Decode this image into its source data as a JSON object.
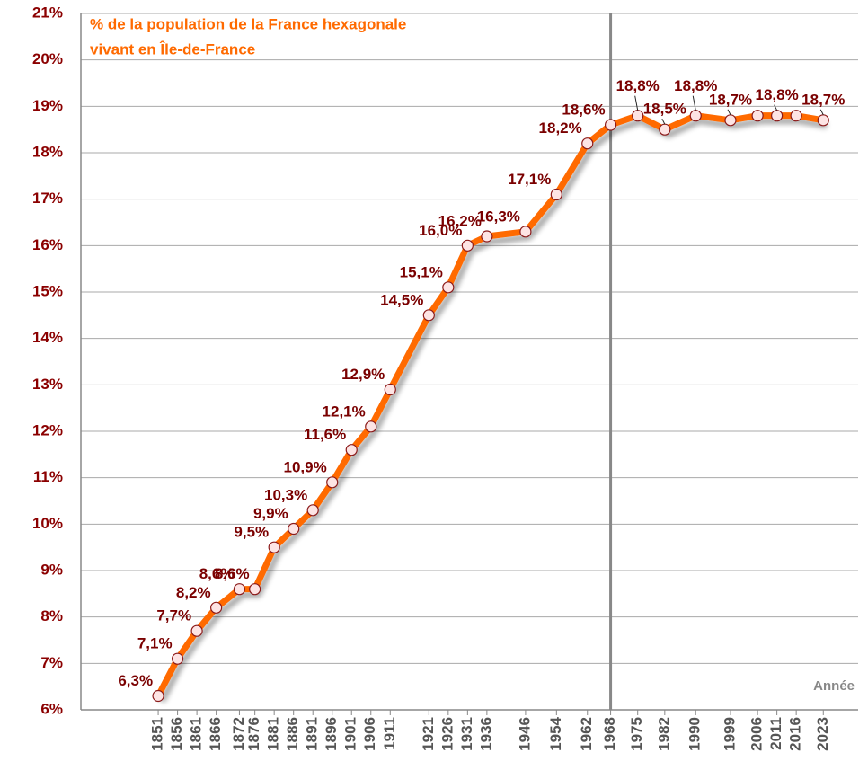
{
  "chart_data": {
    "type": "line",
    "title": [
      "% de la population de la France hexagonale",
      " vivant en Île-de-France"
    ],
    "x_label": "Année",
    "x": [
      1851,
      1856,
      1861,
      1866,
      1872,
      1876,
      1881,
      1886,
      1891,
      1896,
      1901,
      1906,
      1911,
      1921,
      1926,
      1931,
      1936,
      1946,
      1954,
      1962,
      1968,
      1975,
      1982,
      1990,
      1999,
      2006,
      2011,
      2016,
      2023
    ],
    "series": [
      {
        "name": "Île-de-France",
        "color": "#ff6a00",
        "values": [
          6.3,
          7.1,
          7.7,
          8.2,
          8.6,
          8.6,
          9.5,
          9.9,
          10.3,
          10.9,
          11.6,
          12.1,
          12.9,
          14.5,
          15.1,
          16.0,
          16.2,
          16.3,
          17.1,
          18.2,
          18.6,
          18.8,
          18.5,
          18.8,
          18.7,
          18.8,
          18.8,
          18.8,
          18.7
        ],
        "value_labels": [
          "6,3%",
          "7,1%",
          "7,7%",
          "8,2%",
          "8,6%",
          "8,6%",
          "9,5%",
          "9,9%",
          "10,3%",
          "10,9%",
          "11,6%",
          "12,1%",
          "12,9%",
          "14,5%",
          "15,1%",
          "16,0%",
          "16,2%",
          "16,3%",
          "17,1%",
          "18,2%",
          "18,6%",
          "18,8%",
          "18,5%",
          "18,8%",
          "18,7%",
          null,
          "18,8%",
          null,
          "18,7%"
        ]
      }
    ],
    "xlim": [
      1831,
      2032
    ],
    "xticks": [
      1851,
      1856,
      1861,
      1866,
      1872,
      1876,
      1881,
      1886,
      1891,
      1896,
      1901,
      1906,
      1911,
      1921,
      1926,
      1931,
      1936,
      1946,
      1954,
      1962,
      1968,
      1975,
      1982,
      1990,
      1999,
      2006,
      2011,
      2016,
      2023
    ],
    "ylim": [
      6,
      21
    ],
    "yticks": [
      {
        "value": 6,
        "label": "6%"
      },
      {
        "value": 7,
        "label": "7%"
      },
      {
        "value": 8,
        "label": "8%"
      },
      {
        "value": 9,
        "label": "9%"
      },
      {
        "value": 10,
        "label": "10%"
      },
      {
        "value": 11,
        "label": "11%"
      },
      {
        "value": 12,
        "label": "12%"
      },
      {
        "value": 13,
        "label": "13%"
      },
      {
        "value": 14,
        "label": "14%"
      },
      {
        "value": 15,
        "label": "15%"
      },
      {
        "value": 16,
        "label": "16%"
      },
      {
        "value": 17,
        "label": "17%"
      },
      {
        "value": 18,
        "label": "18%"
      },
      {
        "value": 19,
        "label": "19%"
      },
      {
        "value": 20,
        "label": "20%"
      },
      {
        "value": 21,
        "label": "21%"
      }
    ],
    "vline": 1968,
    "grid": true
  }
}
